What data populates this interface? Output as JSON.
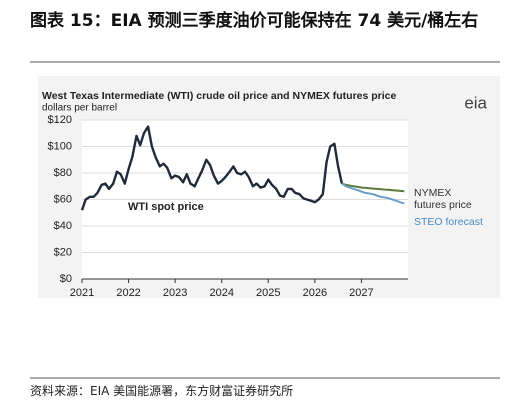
{
  "header": {
    "title": "图表 15：EIA 预测三季度油价可能保持在 74 美元/桶左右"
  },
  "source": "资料来源：EIA 美国能源署，东方财富证券研究所",
  "chart_data": {
    "type": "line",
    "title": "West Texas Intermediate (WTI) crude oil price and NYMEX futures price",
    "subtitle": "dollars per barrel",
    "logo": "eia",
    "xlim": [
      2021,
      2028
    ],
    "xticks": [
      2021,
      2022,
      2023,
      2024,
      2025,
      2026,
      2027
    ],
    "ylim": [
      0,
      120
    ],
    "yticks": [
      {
        "value": 0,
        "label": "$0"
      },
      {
        "value": 20,
        "label": "$20"
      },
      {
        "value": 40,
        "label": "$40"
      },
      {
        "value": 60,
        "label": "$60"
      },
      {
        "value": 80,
        "label": "$80"
      },
      {
        "value": 100,
        "label": "$100"
      },
      {
        "value": 120,
        "label": "$120"
      }
    ],
    "grid": true,
    "series": [
      {
        "name": "WTI spot price",
        "color": "#1f2a3a",
        "x": [
          2021.0,
          2021.08,
          2021.17,
          2021.25,
          2021.33,
          2021.42,
          2021.5,
          2021.58,
          2021.67,
          2021.75,
          2021.83,
          2021.92,
          2022.0,
          2022.08,
          2022.17,
          2022.25,
          2022.33,
          2022.42,
          2022.5,
          2022.58,
          2022.67,
          2022.75,
          2022.83,
          2022.92,
          2023.0,
          2023.08,
          2023.17,
          2023.25,
          2023.33,
          2023.42,
          2023.5,
          2023.58,
          2023.67,
          2023.75,
          2023.83,
          2023.92,
          2024.0,
          2024.08,
          2024.17,
          2024.25,
          2024.33,
          2024.42,
          2024.5,
          2024.58,
          2024.67,
          2024.75,
          2024.83,
          2024.92,
          2025.0,
          2025.08,
          2025.17,
          2025.25,
          2025.33,
          2025.42,
          2025.5,
          2025.58,
          2025.67,
          2025.75,
          2025.83,
          2025.92,
          2026.0,
          2026.08,
          2026.17,
          2026.25,
          2026.33,
          2026.42,
          2026.5,
          2026.58
        ],
        "values": [
          52,
          60,
          62,
          62,
          65,
          71,
          72,
          68,
          72,
          81,
          79,
          72,
          83,
          92,
          108,
          101,
          110,
          115,
          100,
          92,
          85,
          87,
          84,
          76,
          78,
          77,
          73,
          79,
          72,
          70,
          76,
          82,
          90,
          86,
          78,
          72,
          74,
          77,
          81,
          85,
          80,
          79,
          81,
          77,
          70,
          72,
          69,
          70,
          75,
          71,
          68,
          63,
          62,
          68,
          68,
          65,
          64,
          61,
          60,
          59,
          58,
          60,
          64,
          88,
          100,
          102,
          85,
          72
        ]
      },
      {
        "name": "NYMEX futures price",
        "color": "#5b7a3c",
        "x": [
          2026.58,
          2026.67,
          2026.75,
          2026.83,
          2026.92,
          2027.0,
          2027.08,
          2027.17,
          2027.25,
          2027.33,
          2027.42,
          2027.5,
          2027.58,
          2027.67,
          2027.75,
          2027.83,
          2027.92
        ],
        "values": [
          72,
          71,
          70.5,
          70,
          69.5,
          69,
          68.8,
          68.5,
          68.2,
          68,
          67.8,
          67.5,
          67.3,
          67,
          66.8,
          66.5,
          66.3
        ]
      },
      {
        "name": "STEO forecast",
        "color": "#6a9fc8",
        "x": [
          2026.58,
          2026.67,
          2026.75,
          2026.83,
          2026.92,
          2027.0,
          2027.08,
          2027.17,
          2027.25,
          2027.33,
          2027.42,
          2027.5,
          2027.58,
          2027.67,
          2027.75,
          2027.83,
          2027.92
        ],
        "values": [
          72,
          70,
          69,
          68,
          67,
          66,
          65,
          64.5,
          64,
          63,
          62,
          61.5,
          61,
          60,
          59,
          58,
          57
        ]
      }
    ]
  }
}
